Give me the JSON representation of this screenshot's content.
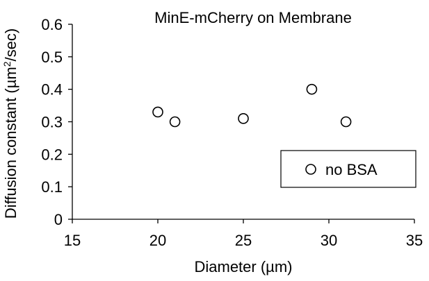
{
  "chart_data": {
    "type": "scatter",
    "title": "MinE-mCherry on Membrane",
    "xlabel": "Diameter (µm)",
    "ylabel_main": "Diffusion constant (µm",
    "ylabel_sup": "2",
    "ylabel_tail": "/sec)",
    "xlim": [
      15,
      35
    ],
    "ylim": [
      0,
      0.6
    ],
    "x_ticks": [
      15,
      20,
      25,
      30,
      35
    ],
    "y_ticks": [
      0,
      0.1,
      0.2,
      0.3,
      0.4,
      0.5,
      0.6
    ],
    "x_tick_labels": [
      "15",
      "20",
      "25",
      "30",
      "35"
    ],
    "y_tick_labels": [
      "0",
      "0.1",
      "0.2",
      "0.3",
      "0.4",
      "0.5",
      "0.6"
    ],
    "grid": false,
    "legend_position": "bottom-right",
    "series": [
      {
        "name": "no BSA",
        "marker": "open-circle",
        "x": [
          20,
          21,
          25,
          29,
          31
        ],
        "y": [
          0.33,
          0.3,
          0.31,
          0.4,
          0.3
        ]
      }
    ]
  }
}
